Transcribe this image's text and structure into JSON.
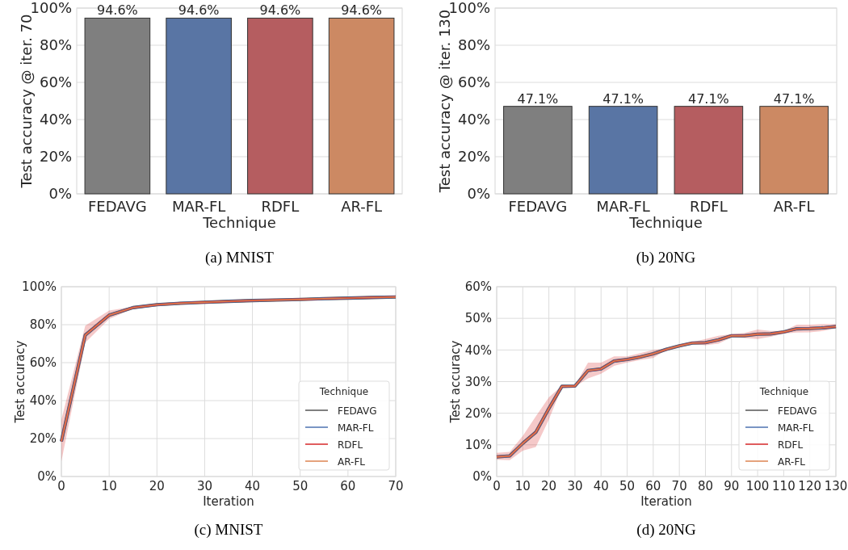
{
  "chart_data": [
    {
      "type": "bar",
      "categories": [
        "FEDAVG",
        "MAR-FL",
        "RDFL",
        "AR-FL"
      ],
      "values": [
        94.6,
        94.6,
        94.6,
        94.6
      ],
      "colors": [
        "#7f7f7f",
        "#5975a4",
        "#b55d60",
        "#cc8963"
      ],
      "value_labels": [
        "94.6%",
        "94.6%",
        "94.6%",
        "94.6%"
      ],
      "ylim": [
        0,
        100
      ],
      "yticks": [
        {
          "value": 0,
          "label": "0%"
        },
        {
          "value": 20,
          "label": "20%"
        },
        {
          "value": 40,
          "label": "40%"
        },
        {
          "value": 60,
          "label": "60%"
        },
        {
          "value": 80,
          "label": "80%"
        },
        {
          "value": 100,
          "label": "100%"
        }
      ],
      "grid": "y",
      "xlabel": "Technique",
      "ylabel": "Test accuracy @ iter. 70",
      "annotations": [
        "(a) MNIST"
      ]
    },
    {
      "type": "bar",
      "categories": [
        "FEDAVG",
        "MAR-FL",
        "RDFL",
        "AR-FL"
      ],
      "values": [
        47.1,
        47.1,
        47.1,
        47.1
      ],
      "colors": [
        "#7f7f7f",
        "#5975a4",
        "#b55d60",
        "#cc8963"
      ],
      "value_labels": [
        "47.1%",
        "47.1%",
        "47.1%",
        "47.1%"
      ],
      "ylim": [
        0,
        100
      ],
      "yticks": [
        {
          "value": 0,
          "label": "0%"
        },
        {
          "value": 20,
          "label": "20%"
        },
        {
          "value": 40,
          "label": "40%"
        },
        {
          "value": 60,
          "label": "60%"
        },
        {
          "value": 80,
          "label": "80%"
        },
        {
          "value": 100,
          "label": "100%"
        }
      ],
      "grid": "y",
      "xlabel": "Technique",
      "ylabel": "Test accuracy @ iter. 130",
      "annotations": [
        "(b) 20NG"
      ]
    },
    {
      "type": "line",
      "x": [
        0,
        5,
        10,
        15,
        20,
        25,
        30,
        35,
        40,
        45,
        50,
        55,
        60,
        65,
        70
      ],
      "series": [
        {
          "name": "FEDAVG",
          "color": "#555555",
          "values": [
            18.5,
            74.5,
            85,
            89,
            90.5,
            91.3,
            91.8,
            92.3,
            92.7,
            93,
            93.3,
            93.7,
            94,
            94.3,
            94.6
          ]
        },
        {
          "name": "MAR-FL",
          "color": "#4c72b0",
          "values": [
            18.5,
            74.5,
            85,
            89,
            90.5,
            91.3,
            91.8,
            92.3,
            92.7,
            93,
            93.3,
            93.7,
            94,
            94.3,
            94.6
          ]
        },
        {
          "name": "RDFL",
          "color": "#d62728",
          "values": [
            18.5,
            74.5,
            85,
            89,
            90.5,
            91.3,
            91.8,
            92.3,
            92.7,
            93,
            93.3,
            93.7,
            94,
            94.3,
            94.6
          ],
          "lower": [
            8,
            70.5,
            83,
            88.5,
            90.3,
            91.1,
            91.6,
            92.1,
            92.5,
            92.8,
            93.1,
            93.5,
            93.8,
            94.1,
            94.4
          ],
          "upper": [
            30,
            79.5,
            87.5,
            89.5,
            90.7,
            91.5,
            92,
            92.5,
            92.9,
            93.2,
            93.5,
            93.9,
            94.2,
            94.5,
            94.8
          ]
        },
        {
          "name": "AR-FL",
          "color": "#dd8452",
          "values": [
            18.5,
            74.5,
            85,
            89,
            90.5,
            91.3,
            91.8,
            92.3,
            92.7,
            93,
            93.3,
            93.7,
            94,
            94.3,
            94.6
          ]
        }
      ],
      "xlim": [
        0,
        70
      ],
      "xticks": [
        0,
        10,
        20,
        30,
        40,
        50,
        60,
        70
      ],
      "ylim": [
        0,
        100
      ],
      "yticks": [
        {
          "value": 0,
          "label": "0%"
        },
        {
          "value": 20,
          "label": "20%"
        },
        {
          "value": 40,
          "label": "40%"
        },
        {
          "value": 60,
          "label": "60%"
        },
        {
          "value": 80,
          "label": "80%"
        },
        {
          "value": 100,
          "label": "100%"
        }
      ],
      "grid": true,
      "legend": "bottom right",
      "legend_title": "Technique",
      "xlabel": "Iteration",
      "ylabel": "Test accuracy",
      "annotations": [
        "(c) MNIST"
      ]
    },
    {
      "type": "line",
      "x": [
        0,
        5,
        10,
        15,
        20,
        25,
        30,
        35,
        40,
        45,
        50,
        55,
        60,
        65,
        70,
        75,
        80,
        85,
        90,
        95,
        100,
        105,
        110,
        115,
        120,
        125,
        130
      ],
      "series": [
        {
          "name": "FEDAVG",
          "color": "#555555",
          "values": [
            6.2,
            6.5,
            10.5,
            14,
            21.5,
            28.5,
            28.6,
            33.5,
            34,
            36.5,
            37,
            37.8,
            38.8,
            40.2,
            41.3,
            42.2,
            42.3,
            43.2,
            44.5,
            44.5,
            45,
            45.1,
            45.7,
            46.7,
            46.8,
            47,
            47.4
          ]
        },
        {
          "name": "MAR-FL",
          "color": "#4c72b0",
          "values": [
            6.2,
            6.5,
            10.5,
            14,
            21.5,
            28.5,
            28.6,
            33.5,
            34,
            36.5,
            37,
            37.8,
            38.8,
            40.2,
            41.3,
            42.2,
            42.3,
            43.2,
            44.5,
            44.5,
            45,
            45.1,
            45.7,
            46.7,
            46.8,
            47,
            47.4
          ]
        },
        {
          "name": "RDFL",
          "color": "#d62728",
          "values": [
            6.2,
            6.5,
            10.5,
            14,
            21.5,
            28.5,
            28.6,
            33.5,
            34,
            36.5,
            37,
            37.8,
            38.8,
            40.2,
            41.3,
            42.2,
            42.3,
            43.2,
            44.5,
            44.5,
            45,
            45.1,
            45.7,
            46.7,
            46.8,
            47,
            47.4
          ],
          "lower": [
            5.3,
            5.2,
            8.2,
            9.3,
            18,
            28.3,
            28.4,
            31,
            32.5,
            35,
            36,
            36.8,
            37.5,
            40,
            41.2,
            41.9,
            41.5,
            42,
            44,
            43.8,
            43.5,
            44.2,
            45.2,
            45.5,
            45.6,
            46,
            46.8
          ],
          "upper": [
            7.5,
            7.8,
            12.8,
            19,
            25,
            28.7,
            28.8,
            36,
            36,
            38,
            38,
            39,
            40,
            40.5,
            41.5,
            42.5,
            43.5,
            44.5,
            45,
            45.4,
            46.5,
            46,
            46,
            48,
            48,
            48.2,
            48.2
          ]
        },
        {
          "name": "AR-FL",
          "color": "#dd8452",
          "values": [
            6.2,
            6.5,
            10.5,
            14,
            21.5,
            28.5,
            28.6,
            33.5,
            34,
            36.5,
            37,
            37.8,
            38.8,
            40.2,
            41.3,
            42.2,
            42.3,
            43.2,
            44.5,
            44.5,
            45,
            45.1,
            45.7,
            46.7,
            46.8,
            47,
            47.4
          ]
        }
      ],
      "xlim": [
        0,
        130
      ],
      "xticks": [
        0,
        10,
        20,
        30,
        40,
        50,
        60,
        70,
        80,
        90,
        100,
        110,
        120,
        130
      ],
      "ylim": [
        0,
        60
      ],
      "yticks": [
        {
          "value": 0,
          "label": "0%"
        },
        {
          "value": 10,
          "label": "10%"
        },
        {
          "value": 20,
          "label": "20%"
        },
        {
          "value": 30,
          "label": "30%"
        },
        {
          "value": 40,
          "label": "40%"
        },
        {
          "value": 50,
          "label": "50%"
        },
        {
          "value": 60,
          "label": "60%"
        }
      ],
      "grid": true,
      "legend": "bottom right",
      "legend_title": "Technique",
      "xlabel": "Iteration",
      "ylabel": "Test accuracy",
      "annotations": [
        "(d) 20NG"
      ]
    }
  ]
}
